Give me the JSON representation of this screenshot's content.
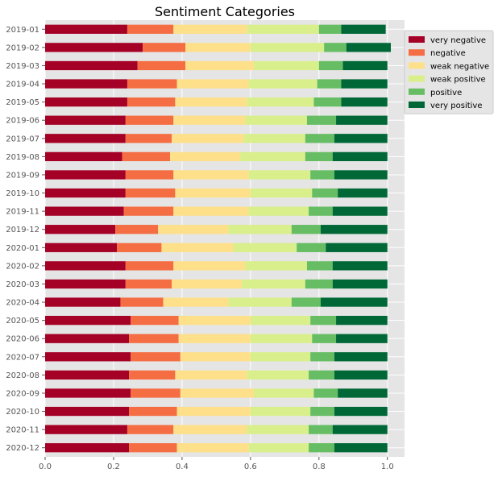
{
  "chart_data": {
    "type": "bar",
    "orientation": "horizontal",
    "stacked": true,
    "title": "Sentiment Categories",
    "xlabel": "",
    "ylabel": "",
    "xlim": [
      0,
      1.05
    ],
    "x_ticks": [
      "0.0",
      "0.2",
      "0.4",
      "0.6",
      "0.8",
      "1.0"
    ],
    "x_tick_values": [
      0,
      0.2,
      0.4,
      0.6,
      0.8,
      1.0
    ],
    "grid": true,
    "legend_position": "right, outside plot, top",
    "background": "#e5e5e5",
    "categories": [
      "2019-01",
      "2019-02",
      "2019-03",
      "2019-04",
      "2019-05",
      "2019-06",
      "2019-07",
      "2019-08",
      "2019-09",
      "2019-10",
      "2019-11",
      "2019-12",
      "2020-01",
      "2020-02",
      "2020-03",
      "2020-04",
      "2020-05",
      "2020-06",
      "2020-07",
      "2020-08",
      "2020-09",
      "2020-10",
      "2020-11",
      "2020-12"
    ],
    "series": [
      {
        "name": "very negative",
        "color": "#a50026",
        "values": [
          0.24,
          0.285,
          0.27,
          0.24,
          0.24,
          0.235,
          0.235,
          0.225,
          0.235,
          0.235,
          0.23,
          0.205,
          0.21,
          0.235,
          0.235,
          0.22,
          0.25,
          0.245,
          0.25,
          0.245,
          0.25,
          0.245,
          0.24,
          0.245
        ]
      },
      {
        "name": "negative",
        "color": "#f46d43",
        "values": [
          0.135,
          0.125,
          0.14,
          0.145,
          0.14,
          0.14,
          0.135,
          0.14,
          0.14,
          0.145,
          0.145,
          0.125,
          0.13,
          0.14,
          0.135,
          0.125,
          0.14,
          0.145,
          0.145,
          0.135,
          0.145,
          0.14,
          0.135,
          0.14
        ]
      },
      {
        "name": "weak negative",
        "color": "#fee08b",
        "values": [
          0.215,
          0.19,
          0.2,
          0.21,
          0.21,
          0.21,
          0.21,
          0.205,
          0.22,
          0.22,
          0.22,
          0.205,
          0.21,
          0.21,
          0.205,
          0.19,
          0.21,
          0.21,
          0.205,
          0.21,
          0.215,
          0.215,
          0.215,
          0.21
        ]
      },
      {
        "name": "weak positive",
        "color": "#d9ef8b",
        "values": [
          0.21,
          0.215,
          0.19,
          0.2,
          0.195,
          0.18,
          0.18,
          0.19,
          0.18,
          0.18,
          0.175,
          0.185,
          0.185,
          0.18,
          0.185,
          0.185,
          0.175,
          0.18,
          0.175,
          0.18,
          0.175,
          0.175,
          0.18,
          0.175
        ]
      },
      {
        "name": "positive",
        "color": "#66bd63",
        "values": [
          0.065,
          0.065,
          0.07,
          0.07,
          0.08,
          0.085,
          0.085,
          0.08,
          0.07,
          0.075,
          0.07,
          0.085,
          0.085,
          0.075,
          0.08,
          0.085,
          0.075,
          0.07,
          0.07,
          0.075,
          0.07,
          0.07,
          0.07,
          0.075
        ]
      },
      {
        "name": "very positive",
        "color": "#006837",
        "values": [
          0.13,
          0.13,
          0.13,
          0.135,
          0.135,
          0.15,
          0.155,
          0.16,
          0.155,
          0.145,
          0.16,
          0.195,
          0.18,
          0.16,
          0.16,
          0.195,
          0.15,
          0.15,
          0.155,
          0.155,
          0.145,
          0.155,
          0.16,
          0.155
        ]
      }
    ]
  }
}
